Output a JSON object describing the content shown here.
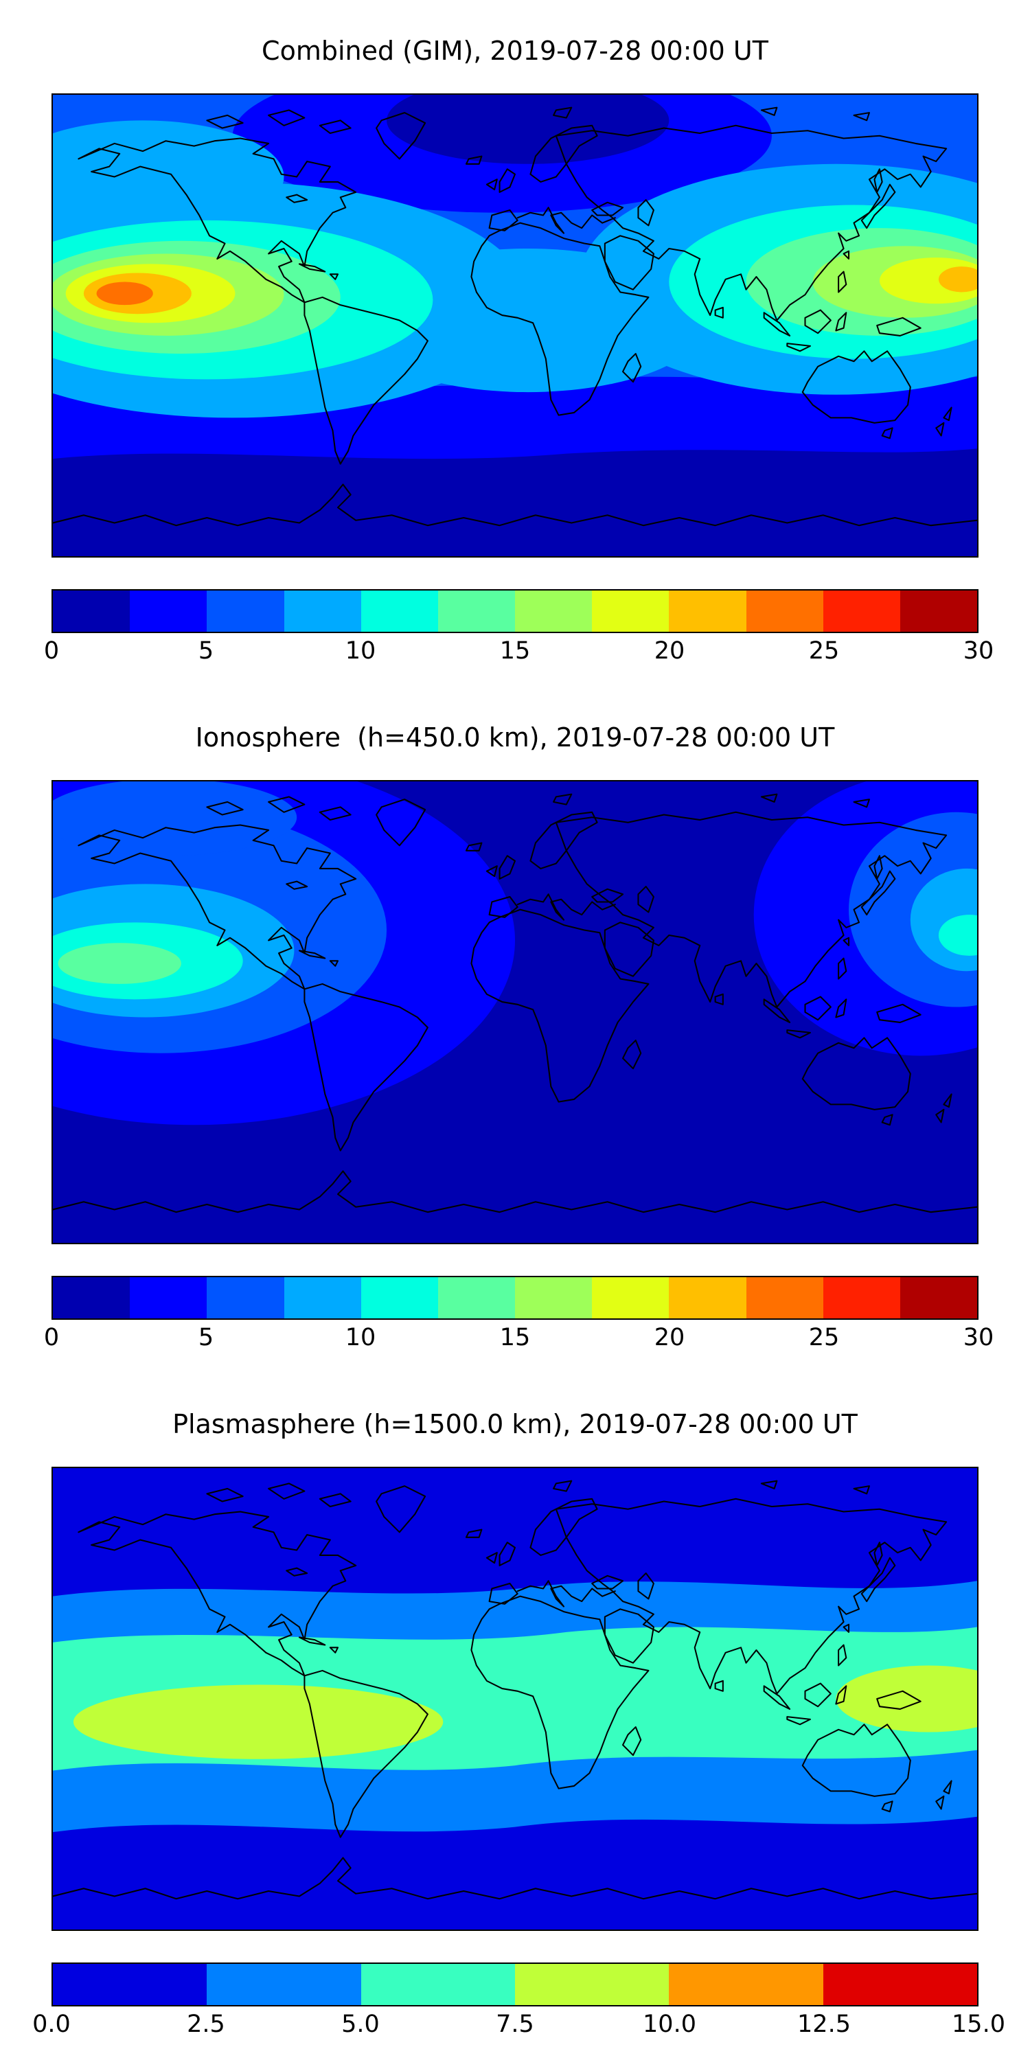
{
  "figure": {
    "background": "#ffffff",
    "text_color": "#000000"
  },
  "palettes": {
    "tec30": [
      "#0000b0",
      "#0000ff",
      "#0055ff",
      "#00aaff",
      "#00ffe0",
      "#59ffa0",
      "#9eff59",
      "#e2ff14",
      "#ffbf00",
      "#ff7000",
      "#ff2100",
      "#b00000"
    ],
    "tec15": [
      "#0000e0",
      "#0080ff",
      "#38ffc0",
      "#c0ff38",
      "#ff9700",
      "#e00000"
    ]
  },
  "panels": [
    {
      "title": "Combined (GIM), 2019-07-28 00:00 UT",
      "colorbar": {
        "min": 0,
        "max": 30,
        "palette": "tec30",
        "ticks": [
          "0",
          "5",
          "10",
          "15",
          "20",
          "25",
          "30"
        ]
      }
    },
    {
      "title": "Ionosphere  (h=450.0 km), 2019-07-28 00:00 UT",
      "colorbar": {
        "min": 0,
        "max": 30,
        "palette": "tec30",
        "ticks": [
          "0",
          "5",
          "10",
          "15",
          "20",
          "25",
          "30"
        ]
      }
    },
    {
      "title": "Plasmasphere (h=1500.0 km), 2019-07-28 00:00 UT",
      "colorbar": {
        "min": 0,
        "max": 15,
        "palette": "tec15",
        "ticks": [
          "0.0",
          "2.5",
          "5.0",
          "7.5",
          "10.0",
          "12.5",
          "15.0"
        ]
      }
    }
  ],
  "chart_data": [
    {
      "type": "heatmap",
      "subtype": "filled_contour_world_map",
      "title": "Combined (GIM), 2019-07-28 00:00 UT",
      "projection": "equirectangular",
      "extent": {
        "lon": [
          -180,
          180
        ],
        "lat": [
          -90,
          90
        ]
      },
      "colorbar_range": [
        0,
        30
      ],
      "colorbar_ticks": [
        0,
        5,
        10,
        15,
        20,
        25,
        30
      ],
      "contour_level_step": 2.5,
      "features": [
        {
          "region": "equatorial eastern Pacific hotspot (~135W, 10S-5N)",
          "value_max": 25
        },
        {
          "region": "western Pacific / East Asia hotspot (~165E, 0-15N)",
          "value_max": 22
        },
        {
          "region": "equatorial band elsewhere",
          "value_range": [
            8,
            17
          ]
        },
        {
          "region": "northern high latitudes (Europe / Arctic)",
          "value_range": [
            0,
            5
          ]
        },
        {
          "region": "southern high latitudes / Antarctic",
          "value_range": [
            0,
            5
          ]
        },
        {
          "region": "mid-latitude oceans",
          "value_range": [
            5,
            10
          ]
        }
      ]
    },
    {
      "type": "heatmap",
      "subtype": "filled_contour_world_map",
      "title": "Ionosphere  (h=450.0 km), 2019-07-28 00:00 UT",
      "projection": "equirectangular",
      "extent": {
        "lon": [
          -180,
          180
        ],
        "lat": [
          -90,
          90
        ]
      },
      "colorbar_range": [
        0,
        30
      ],
      "colorbar_ticks": [
        0,
        5,
        10,
        15,
        20,
        25,
        30
      ],
      "contour_level_step": 2.5,
      "features": [
        {
          "region": "north-central Pacific maximum (~165W, 15-25N)",
          "value_max": 16
        },
        {
          "region": "small maximum east of Japan (~175E, 30N)",
          "value_max": 12
        },
        {
          "region": "eastern Pacific / North America band",
          "value_range": [
            5,
            12
          ]
        },
        {
          "region": "most of globe (Atlantic, Africa, Indian Ocean, south)",
          "value_range": [
            0,
            5
          ]
        }
      ]
    },
    {
      "type": "heatmap",
      "subtype": "filled_contour_world_map",
      "title": "Plasmasphere (h=1500.0 km), 2019-07-28 00:00 UT",
      "projection": "equirectangular",
      "extent": {
        "lon": [
          -180,
          180
        ],
        "lat": [
          -90,
          90
        ]
      },
      "colorbar_range": [
        0,
        15
      ],
      "colorbar_ticks": [
        0,
        2.5,
        5,
        7.5,
        10,
        12.5,
        15
      ],
      "contour_level_step": 2.5,
      "features": [
        {
          "region": "equatorial belt (~25S-25N), all longitudes",
          "value_range": [
            5,
            7.5
          ]
        },
        {
          "region": "South America / west Atlantic blob (~60W, 10S)",
          "value_max": 10
        },
        {
          "region": "west Pacific blob (~160E, 5S-10N)",
          "value_max": 10
        },
        {
          "region": "mid latitudes transition ring",
          "value_range": [
            2.5,
            5
          ]
        },
        {
          "region": "high latitudes north and south",
          "value_range": [
            0,
            2.5
          ]
        }
      ]
    }
  ]
}
